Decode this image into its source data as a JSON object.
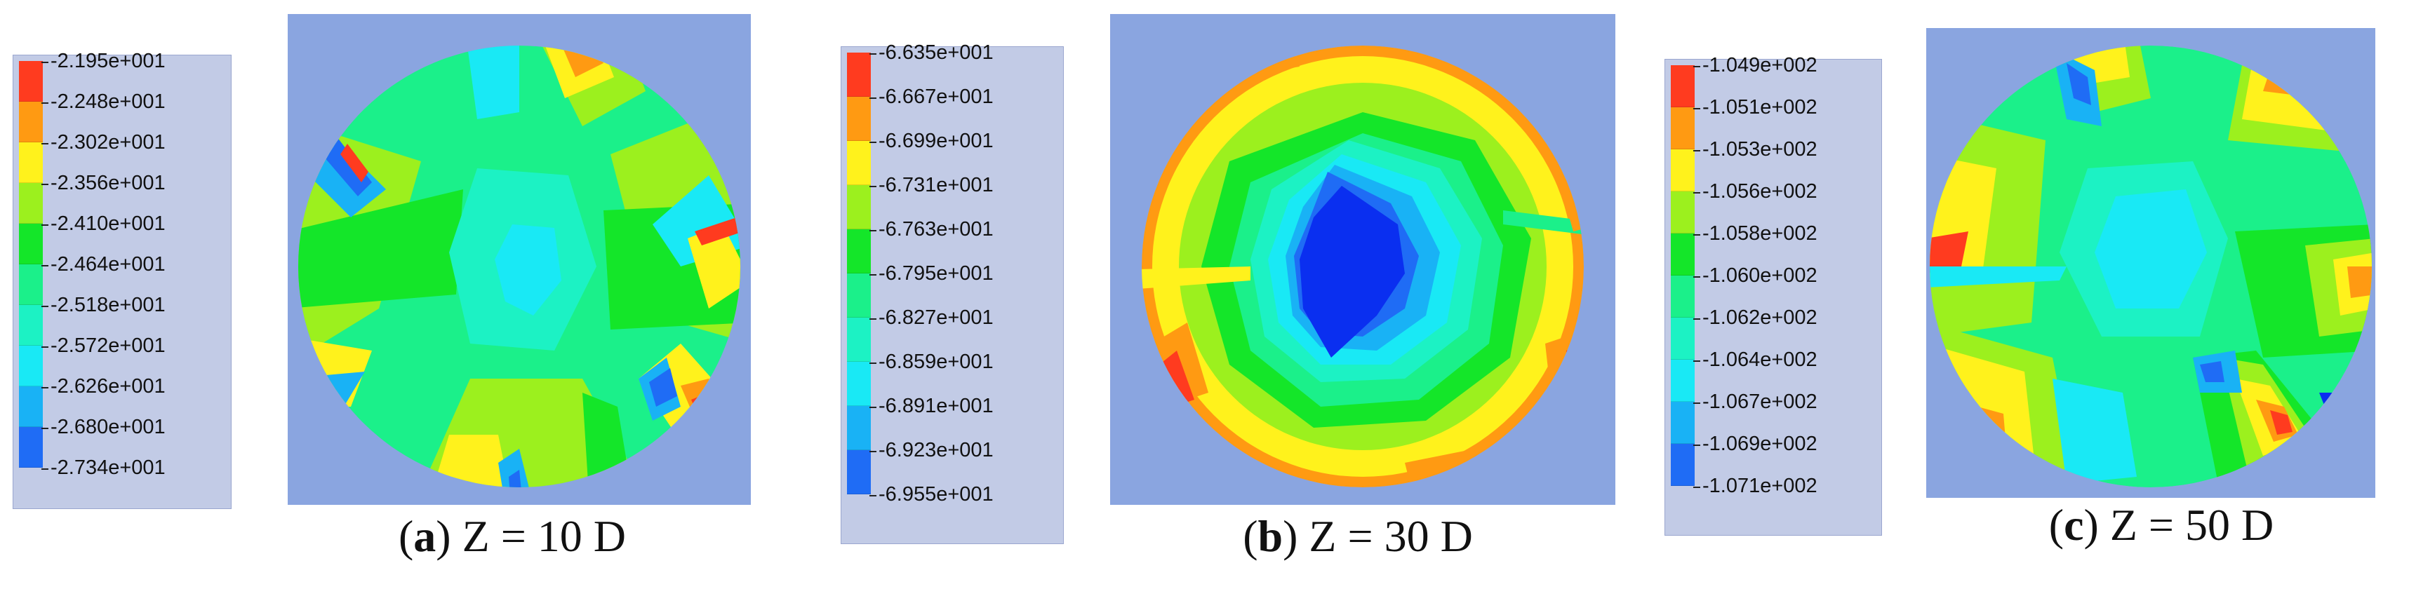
{
  "panels": [
    {
      "id": "a",
      "caption_letter": "a",
      "caption_rest": " Z = 10 D",
      "legend": [
        "-2.195e+001",
        "-2.248e+001",
        "-2.302e+001",
        "-2.356e+001",
        "-2.410e+001",
        "-2.464e+001",
        "-2.518e+001",
        "-2.572e+001",
        "-2.626e+001",
        "-2.680e+001",
        "-2.734e+001"
      ]
    },
    {
      "id": "b",
      "caption_letter": "b",
      "caption_rest": " Z = 30 D",
      "legend": [
        "-6.635e+001",
        "-6.667e+001",
        "-6.699e+001",
        "-6.731e+001",
        "-6.763e+001",
        "-6.795e+001",
        "-6.827e+001",
        "-6.859e+001",
        "-6.891e+001",
        "-6.923e+001",
        "-6.955e+001"
      ]
    },
    {
      "id": "c",
      "caption_letter": "c",
      "caption_rest": " Z = 50 D",
      "legend": [
        "-1.049e+002",
        "-1.051e+002",
        "-1.053e+002",
        "-1.056e+002",
        "-1.058e+002",
        "-1.060e+002",
        "-1.062e+002",
        "-1.064e+002",
        "-1.067e+002",
        "-1.069e+002",
        "-1.071e+002"
      ]
    }
  ],
  "colormap": [
    "#ff3b1f",
    "#ff9a12",
    "#fff21c",
    "#9cf01e",
    "#14e629",
    "#1bf08a",
    "#1cf2c4",
    "#19e9f5",
    "#19b2f5",
    "#1f6cf5",
    "#0a2ff0"
  ]
}
